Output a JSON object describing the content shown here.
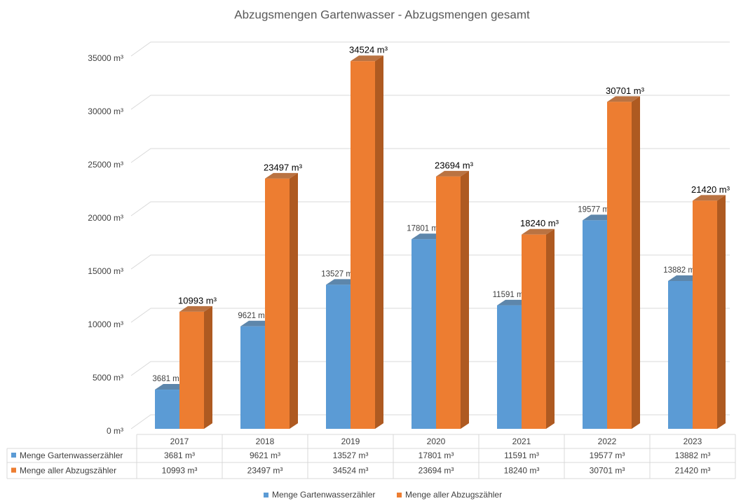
{
  "chart_data": {
    "type": "bar3d",
    "title": "Abzugsmengen Gartenwasser - Abzugsmengen gesamt",
    "categories": [
      "2017",
      "2018",
      "2019",
      "2020",
      "2021",
      "2022",
      "2023"
    ],
    "series": [
      {
        "name": "Menge Gartenwasserzähler",
        "color": "#5b9bd5",
        "side_color": "#41719c",
        "values": [
          3681,
          9621,
          13527,
          17801,
          11591,
          19577,
          13882
        ],
        "value_labels": [
          "3681 m³",
          "9621 m³",
          "13527 m³",
          "17801 m³",
          "11591 m³",
          "19577 m³",
          "13882 m³"
        ]
      },
      {
        "name": "Menge aller Abzugszähler",
        "color": "#ed7d31",
        "side_color": "#ae5a21",
        "values": [
          10993,
          23497,
          34524,
          23694,
          18240,
          30701,
          21420
        ],
        "value_labels": [
          "10993 m³",
          "23497 m³",
          "34524 m³",
          "23694 m³",
          "18240 m³",
          "30701 m³",
          "21420 m³"
        ]
      }
    ],
    "ylim": [
      0,
      35000
    ],
    "yticks": [
      {
        "value": 0,
        "label": "0 m³"
      },
      {
        "value": 5000,
        "label": "5000 m³"
      },
      {
        "value": 10000,
        "label": "10000 m³"
      },
      {
        "value": 15000,
        "label": "15000 m³"
      },
      {
        "value": 20000,
        "label": "20000 m³"
      },
      {
        "value": 25000,
        "label": "25000 m³"
      },
      {
        "value": 30000,
        "label": "30000 m³"
      },
      {
        "value": 35000,
        "label": "35000 m³"
      }
    ],
    "grid": true,
    "legend": "bottom",
    "data_table": true
  }
}
